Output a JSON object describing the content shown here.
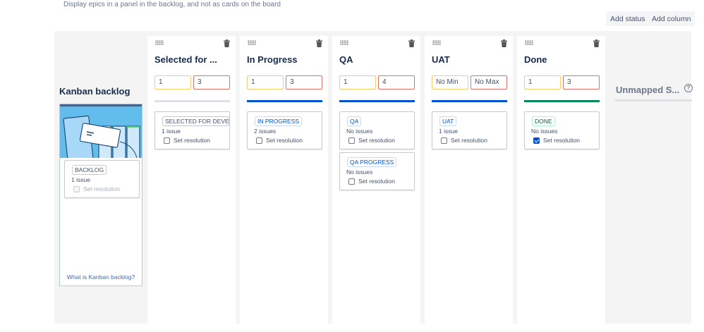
{
  "hint": "Display epics in a panel in the backlog, and not as cards on the board",
  "toolbar": {
    "add_status": "Add status",
    "add_column": "Add column"
  },
  "backlog": {
    "title": "Kanban backlog",
    "status": {
      "label": "BACKLOG",
      "count": "1 issue",
      "resolution": "Set resolution",
      "checked": false
    },
    "link": "What is Kanban backlog?"
  },
  "columns": [
    {
      "title": "Selected for ...",
      "min": "1",
      "max": "3",
      "bar_color": "#dfe1e6",
      "statuses": [
        {
          "label": "SELECTED FOR DEVEL...",
          "count": "1 issue",
          "resolution": "Set resolution",
          "checked": false
        }
      ]
    },
    {
      "title": "In Progress",
      "min": "1",
      "max": "3",
      "bar_color": "#0052cc",
      "statuses": [
        {
          "label": "IN PROGRESS",
          "count": "2 issues",
          "resolution": "Set resolution",
          "checked": false
        }
      ]
    },
    {
      "title": "QA",
      "min": "1",
      "max": "4",
      "bar_color": "#0052cc",
      "statuses": [
        {
          "label": "QA",
          "count": "No issues",
          "resolution": "Set resolution",
          "checked": false
        },
        {
          "label": "QA PROGRESS",
          "count": "No issues",
          "resolution": "Set resolution",
          "checked": false
        }
      ]
    },
    {
      "title": "UAT",
      "min": "No Min",
      "max": "No Max",
      "bar_color": "#0052cc",
      "statuses": [
        {
          "label": "UAT",
          "count": "1 issue",
          "resolution": "Set resolution",
          "checked": false
        }
      ]
    },
    {
      "title": "Done",
      "min": "1",
      "max": "3",
      "bar_color": "#00875a",
      "statuses": [
        {
          "label": "DONE",
          "count": "No issues",
          "resolution": "Set resolution",
          "checked": true
        }
      ]
    }
  ],
  "unmapped": {
    "title": "Unmapped S...",
    "help": "?"
  }
}
